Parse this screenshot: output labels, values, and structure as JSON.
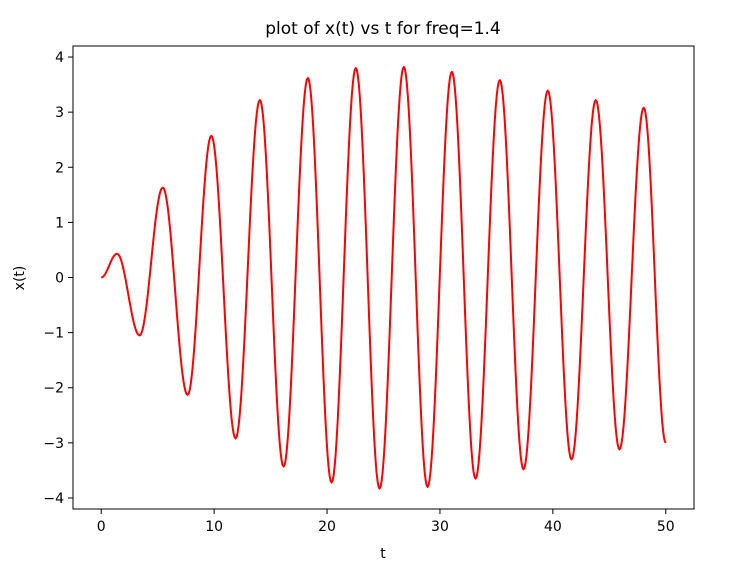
{
  "chart_data": {
    "type": "line",
    "title": "plot of x(t) vs t for freq=1.4",
    "xlabel": "t",
    "ylabel": "x(t)",
    "xlim": [
      -2.5,
      52.5
    ],
    "ylim": [
      -4.2,
      4.2
    ],
    "xticks": [
      0,
      10,
      20,
      30,
      40,
      50
    ],
    "xtick_labels": [
      "0",
      "10",
      "20",
      "30",
      "40",
      "50"
    ],
    "yticks": [
      -4,
      -3,
      -2,
      -1,
      0,
      1,
      2,
      3,
      4
    ],
    "ytick_labels": [
      "−4",
      "−3",
      "−2",
      "−1",
      "0",
      "1",
      "2",
      "3",
      "4"
    ],
    "grid": false,
    "series": [
      {
        "color": "#ff0000",
        "x": [
          0.0,
          1.4,
          3.4,
          5.45,
          7.65,
          9.75,
          11.9,
          14.05,
          16.15,
          18.3,
          20.4,
          22.55,
          24.65,
          26.8,
          28.9,
          31.05,
          33.15,
          35.3,
          37.4,
          39.55,
          41.65,
          43.8,
          45.9,
          48.05,
          50.0
        ],
        "y": [
          0.0,
          0.43,
          -1.05,
          1.63,
          -2.13,
          2.57,
          -2.92,
          3.22,
          -3.43,
          3.62,
          -3.72,
          3.8,
          -3.83,
          3.82,
          -3.8,
          3.73,
          -3.65,
          3.58,
          -3.48,
          3.39,
          -3.3,
          3.22,
          -3.12,
          3.08,
          -3.0
        ]
      }
    ]
  }
}
